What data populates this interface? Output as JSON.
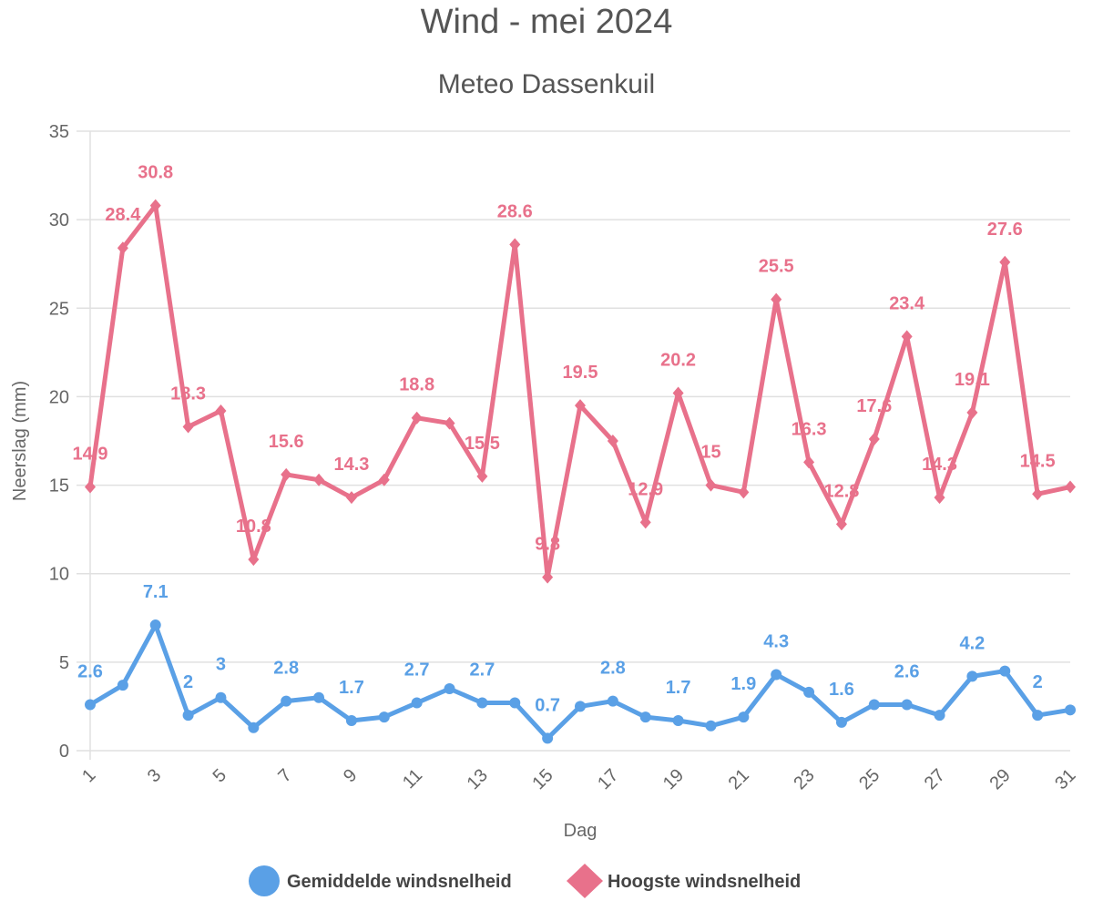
{
  "chart_data": {
    "type": "line",
    "title": "Wind - mei 2024",
    "subtitle": "Meteo Dassenkuil",
    "xlabel": "Dag",
    "ylabel": "Neerslag (mm)",
    "ylim": [
      0,
      35
    ],
    "y_ticks": [
      "0",
      "5",
      "10",
      "15",
      "20",
      "25",
      "30",
      "35"
    ],
    "x_ticks": [
      "1",
      "3",
      "5",
      "7",
      "9",
      "11",
      "13",
      "15",
      "17",
      "19",
      "21",
      "23",
      "25",
      "27",
      "29",
      "31"
    ],
    "grid": true,
    "legend_position": "bottom",
    "x": [
      1,
      2,
      3,
      4,
      5,
      6,
      7,
      8,
      9,
      10,
      11,
      12,
      13,
      14,
      15,
      16,
      17,
      18,
      19,
      20,
      21,
      22,
      23,
      24,
      25,
      26,
      27,
      28,
      29,
      30,
      31
    ],
    "series": [
      {
        "name": "Gemiddelde windsnelheid",
        "color": "#5aa0e6",
        "marker": "circle",
        "values": [
          2.6,
          3.7,
          7.1,
          2.0,
          3.0,
          1.3,
          2.8,
          3.0,
          1.7,
          1.9,
          2.7,
          3.5,
          2.7,
          2.7,
          0.7,
          2.5,
          2.8,
          1.9,
          1.7,
          1.4,
          1.9,
          4.3,
          3.3,
          1.6,
          2.6,
          2.6,
          2.0,
          4.2,
          4.5,
          2.0,
          2.3
        ],
        "labels": {
          "1": "2.6",
          "3": "7.1",
          "4": "2",
          "5": "3",
          "7": "2.8",
          "9": "1.7",
          "11": "2.7",
          "13": "2.7",
          "15": "0.7",
          "17": "2.8",
          "19": "1.7",
          "21": "1.9",
          "22": "4.3",
          "24": "1.6",
          "26": "2.6",
          "28": "4.2",
          "30": "2"
        }
      },
      {
        "name": "Hoogste windsnelheid",
        "color": "#e8718b",
        "marker": "diamond",
        "values": [
          14.9,
          28.4,
          30.8,
          18.3,
          19.2,
          10.8,
          15.6,
          15.3,
          14.3,
          15.3,
          18.8,
          18.5,
          15.5,
          28.6,
          9.8,
          19.5,
          17.5,
          12.9,
          20.2,
          15.0,
          14.6,
          25.5,
          16.3,
          12.8,
          17.6,
          23.4,
          14.3,
          19.1,
          27.6,
          14.5,
          14.9
        ],
        "labels": {
          "1": "14.9",
          "2": "28.4",
          "3": "30.8",
          "4": "18.3",
          "6": "10.8",
          "7": "15.6",
          "9": "14.3",
          "11": "18.8",
          "13": "15.5",
          "14": "28.6",
          "15": "9.8",
          "16": "19.5",
          "18": "12.9",
          "19": "20.2",
          "20": "15",
          "22": "25.5",
          "23": "16.3",
          "24": "12.8",
          "25": "17.6",
          "26": "23.4",
          "27": "14.3",
          "28": "19.1",
          "29": "27.6",
          "30": "14.5"
        }
      }
    ]
  }
}
